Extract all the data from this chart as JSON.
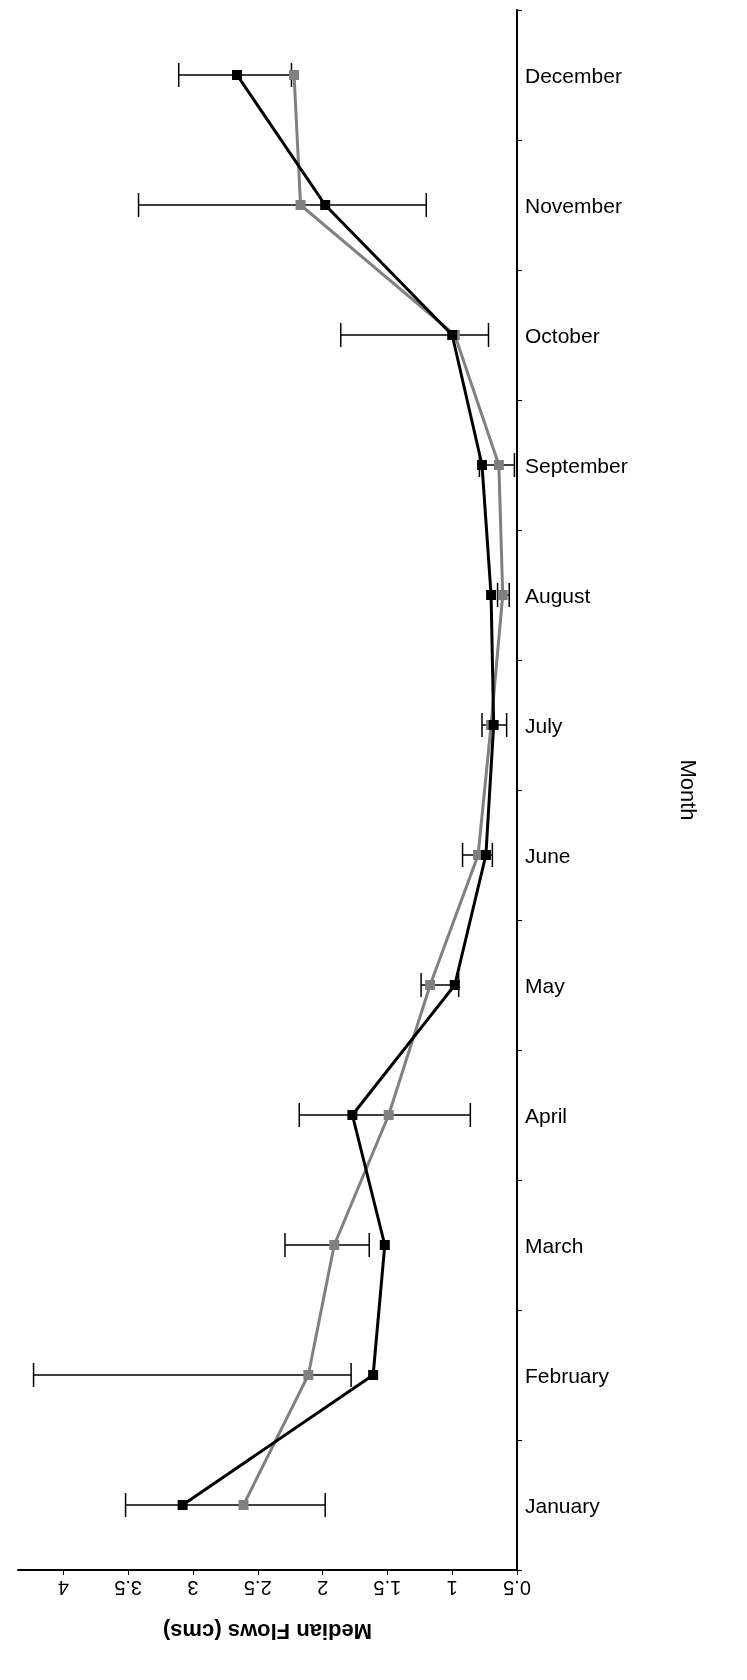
{
  "chart_data": {
    "type": "line",
    "orientation": "horizontal",
    "xlabel": "Median Flows (cms)",
    "ylabel": "Month",
    "marker": "square",
    "categories": [
      "December",
      "November",
      "October",
      "September",
      "August",
      "July",
      "June",
      "May",
      "April",
      "March",
      "February",
      "January"
    ],
    "series": [
      {
        "color": "#808080",
        "values": [
          2.22,
          2.17,
          0.98,
          0.64,
          0.61,
          0.7,
          0.8,
          1.17,
          1.49,
          1.91,
          2.11,
          2.61
        ]
      },
      {
        "color": "#000000",
        "values": [
          2.66,
          1.98,
          1.0,
          0.77,
          0.7,
          0.68,
          0.74,
          0.98,
          1.77,
          1.52,
          1.61,
          3.08
        ],
        "errors": [
          [
            2.24,
            3.11
          ],
          [
            1.2,
            3.42
          ],
          [
            0.72,
            1.86
          ],
          [
            0.52,
            0.79
          ],
          [
            0.56,
            0.65
          ],
          [
            0.58,
            0.77
          ],
          [
            0.69,
            0.92
          ],
          [
            0.95,
            1.24
          ],
          [
            0.86,
            2.18
          ],
          [
            1.64,
            2.29
          ],
          [
            1.78,
            4.23
          ],
          [
            1.98,
            3.52
          ]
        ]
      }
    ],
    "xlim": [
      4.35,
      0.5
    ],
    "xticks": [
      4,
      3.5,
      3,
      2.5,
      2,
      1.5,
      1,
      0.5
    ]
  }
}
